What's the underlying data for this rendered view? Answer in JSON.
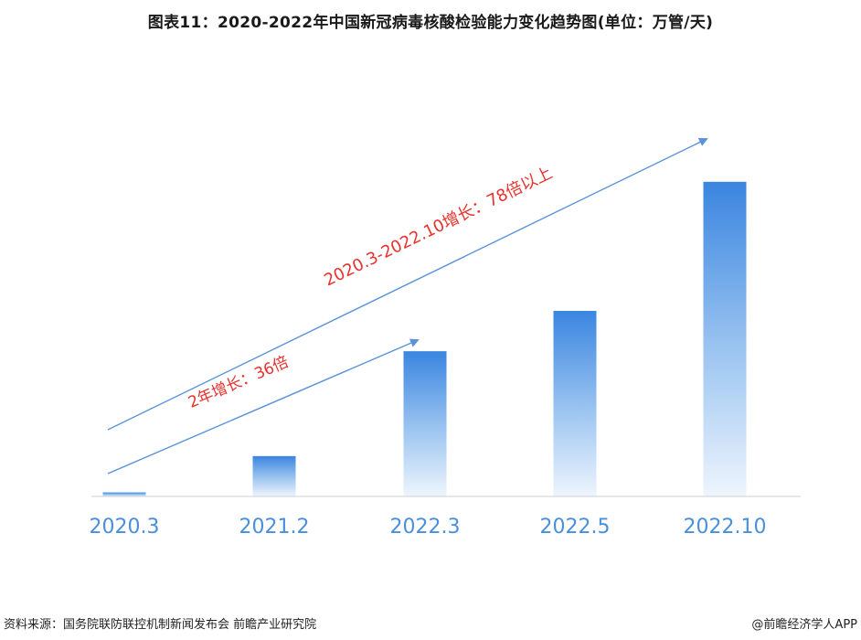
{
  "title": "图表11：2020-2022年中国新冠病毒核酸检验能力变化趋势图(单位：万管/天)",
  "chart_data": {
    "type": "bar",
    "categories": [
      "2020.3",
      "2021.2",
      "2022.3",
      "2022.5",
      "2022.10"
    ],
    "values": [
      1,
      10,
      36,
      46,
      78
    ],
    "ylim": [
      0,
      80
    ],
    "grid": false,
    "annotations": [
      {
        "text": "2年增长：36倍",
        "from": "2020.3",
        "to": "2022.3"
      },
      {
        "text": "2020.3-2022.10增长：78倍以上",
        "from": "2020.3",
        "to": "2022.10"
      }
    ]
  },
  "colors": {
    "bar_top": "#3a85e0",
    "bar_bottom": "#eef5fd",
    "arrow": "#5b93d9",
    "annotation_text": "#e8322e",
    "tick_label": "#4a8fdc",
    "axis": "#cfcfcf"
  },
  "footer": {
    "source": "资料来源：国务院联防联控机制新闻发布会 前瞻产业研究院",
    "credit": "@前瞻经济学人APP"
  }
}
